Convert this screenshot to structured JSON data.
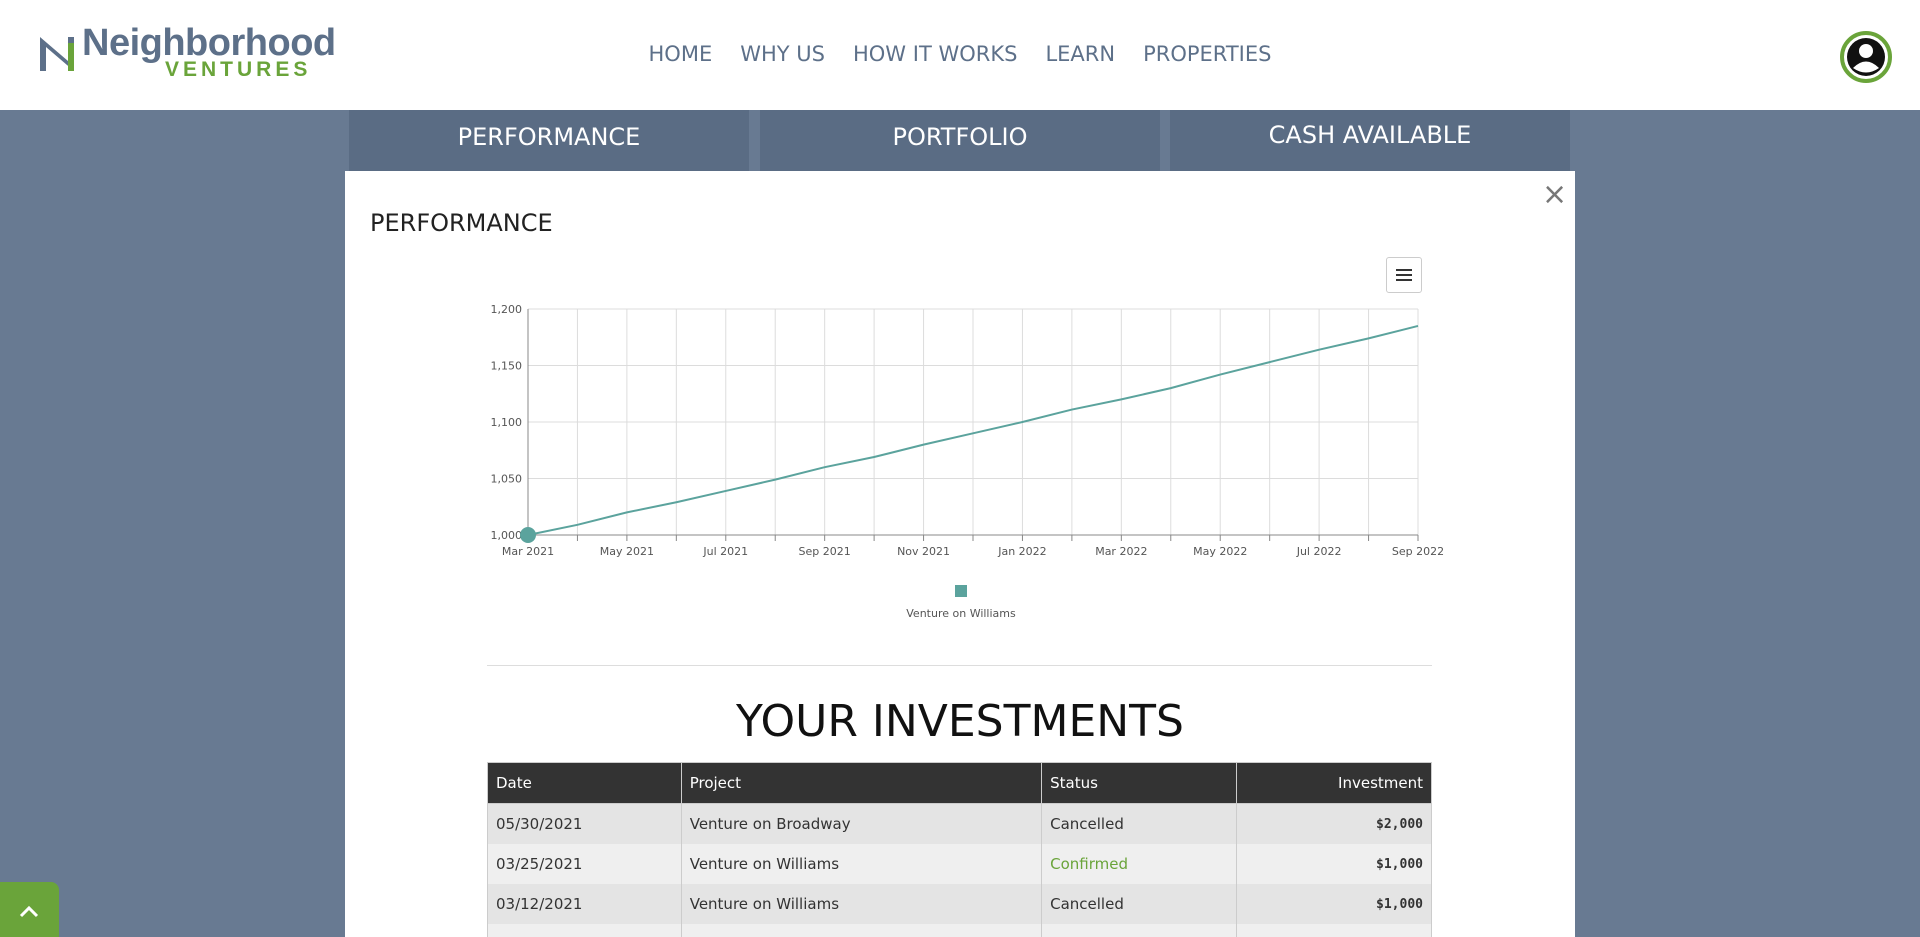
{
  "header": {
    "logo": {
      "name": "Neighborhood",
      "sub": "VENTURES"
    },
    "nav": [
      "HOME",
      "WHY US",
      "HOW IT WORKS",
      "LEARN",
      "PROPERTIES"
    ]
  },
  "tabs": [
    "PERFORMANCE",
    "PORTFOLIO",
    "CASH AVAILABLE"
  ],
  "modal": {
    "title": "PERFORMANCE",
    "close": "×"
  },
  "chart_data": {
    "type": "line",
    "categories": [
      "Mar 2021",
      null,
      "May 2021",
      null,
      "Jul 2021",
      null,
      "Sep 2021",
      null,
      "Nov 2021",
      null,
      "Jan 2022",
      null,
      "Mar 2022",
      null,
      "May 2022",
      null,
      "Jul 2022",
      null,
      "Sep 2022"
    ],
    "series": [
      {
        "name": "Venture on Williams",
        "color": "#5ba39d",
        "values": [
          1000,
          1009,
          1020,
          1029,
          1039,
          1049,
          1060,
          1069,
          1080,
          1090,
          1100,
          1111,
          1120,
          1130,
          1142,
          1153,
          1164,
          1174,
          1185
        ]
      }
    ],
    "ylim": [
      1000,
      1200
    ],
    "yticks": [
      {
        "value": 1000,
        "label": "1,000"
      },
      {
        "value": 1050,
        "label": "1,050"
      },
      {
        "value": 1100,
        "label": "1,100"
      },
      {
        "value": 1150,
        "label": "1,150"
      },
      {
        "value": 1200,
        "label": "1,200"
      }
    ],
    "grid": true,
    "legend": "bottom"
  },
  "investments": {
    "title": "YOUR INVESTMENTS",
    "columns": [
      "Date",
      "Project",
      "Status",
      "Investment"
    ],
    "rows": [
      [
        "05/30/2021",
        "Venture on Broadway",
        "Cancelled",
        "$2,000"
      ],
      [
        "03/25/2021",
        "Venture on Williams",
        "Confirmed",
        "$1,000"
      ],
      [
        "03/12/2021",
        "Venture on Williams",
        "Cancelled",
        "$1,000"
      ]
    ],
    "status_colors": [
      "#333333",
      "#6aa43a",
      "#333333"
    ]
  }
}
